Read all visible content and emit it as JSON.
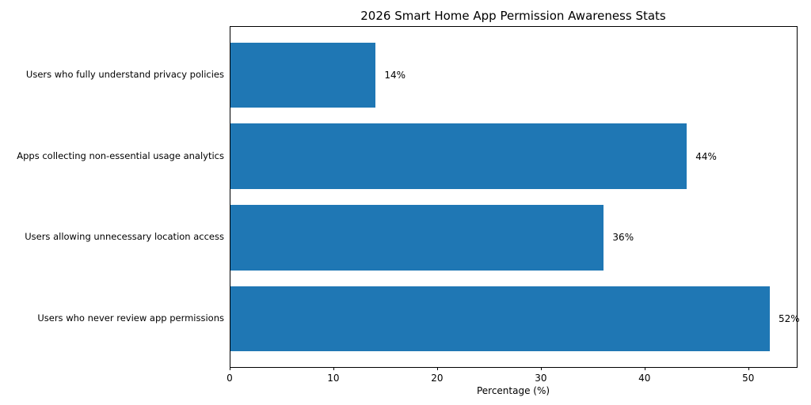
{
  "chart_data": {
    "type": "bar",
    "orientation": "horizontal",
    "title": "2026 Smart Home App Permission Awareness Stats",
    "xlabel": "Percentage (%)",
    "ylabel": "",
    "categories": [
      "Users who fully understand privacy policies",
      "Apps collecting non-essential usage analytics",
      "Users allowing unnecessary location access",
      "Users who never review app permissions"
    ],
    "values": [
      14,
      44,
      36,
      52
    ],
    "bar_labels": [
      "14%",
      "44%",
      "36%",
      "52%"
    ],
    "xticks": [
      0,
      10,
      20,
      30,
      40,
      50
    ],
    "xlim": [
      0,
      54.6
    ],
    "grid": false,
    "legend": false,
    "bar_color": "#1f77b4",
    "text_color": "#000000",
    "spine_color": "#000000"
  }
}
